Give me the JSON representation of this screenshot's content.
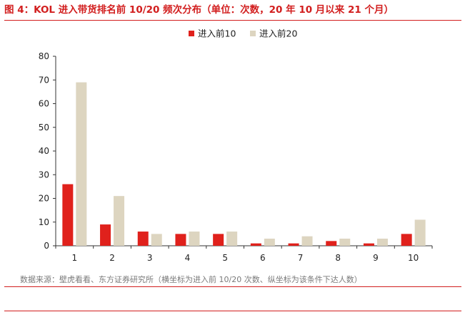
{
  "figure": {
    "caption": "图 4：KOL 进入带货排名前 10/20 频次分布（单位：次数，20 年 10 月以来 21 个月）",
    "source": "数据来源：壁虎看看、东方证券研究所（横坐标为进入前 10/20 次数、纵坐标为该条件下达人数）"
  },
  "chart_data": {
    "type": "bar",
    "categories": [
      "1",
      "2",
      "3",
      "4",
      "5",
      "6",
      "7",
      "8",
      "9",
      "10"
    ],
    "series": [
      {
        "name": "进入前10",
        "color": "#e0211c",
        "values": [
          26,
          9,
          6,
          5,
          5,
          1,
          1,
          2,
          1,
          5
        ]
      },
      {
        "name": "进入前20",
        "color": "#ddd5c0",
        "values": [
          69,
          21,
          5,
          6,
          6,
          3,
          4,
          3,
          3,
          11
        ]
      }
    ],
    "ylim": [
      0,
      80
    ],
    "yticks": [
      0,
      10,
      20,
      30,
      40,
      50,
      60,
      70,
      80
    ],
    "grid": false,
    "legend": "top-center"
  }
}
